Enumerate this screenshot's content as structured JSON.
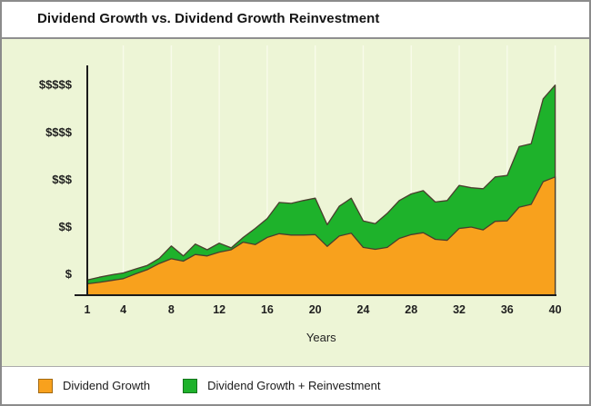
{
  "chart_data": {
    "type": "area",
    "title": "Dividend Growth vs. Dividend Growth Reinvestment",
    "xlabel": "Years",
    "ylabel": "",
    "x_ticks": [
      1,
      4,
      8,
      12,
      16,
      20,
      24,
      28,
      32,
      36,
      40
    ],
    "y_ticks": [
      {
        "value": 1,
        "label": "$"
      },
      {
        "value": 2,
        "label": "$$"
      },
      {
        "value": 3,
        "label": "$$$"
      },
      {
        "value": 4,
        "label": "$$$$"
      },
      {
        "value": 5,
        "label": "$$$$$"
      }
    ],
    "x": [
      1,
      2,
      3,
      4,
      5,
      6,
      7,
      8,
      9,
      10,
      11,
      12,
      13,
      14,
      15,
      16,
      17,
      18,
      19,
      20,
      21,
      22,
      23,
      24,
      25,
      26,
      27,
      28,
      29,
      30,
      31,
      32,
      33,
      34,
      35,
      36,
      37,
      38,
      39,
      40
    ],
    "series": [
      {
        "name": "Dividend Growth",
        "color": "#F8A11D",
        "values": [
          0.79,
          0.82,
          0.86,
          0.9,
          1.0,
          1.09,
          1.22,
          1.32,
          1.27,
          1.41,
          1.38,
          1.46,
          1.51,
          1.67,
          1.62,
          1.77,
          1.85,
          1.82,
          1.82,
          1.83,
          1.58,
          1.8,
          1.86,
          1.56,
          1.52,
          1.56,
          1.75,
          1.83,
          1.87,
          1.73,
          1.71,
          1.96,
          1.99,
          1.93,
          2.11,
          2.12,
          2.41,
          2.47,
          2.95,
          3.05
        ]
      },
      {
        "name": "Dividend Growth + Reinvestment",
        "color": "#1EB22B",
        "values": [
          0.87,
          0.93,
          0.98,
          1.02,
          1.1,
          1.18,
          1.33,
          1.59,
          1.38,
          1.63,
          1.51,
          1.65,
          1.55,
          1.77,
          1.96,
          2.17,
          2.51,
          2.49,
          2.55,
          2.6,
          2.04,
          2.43,
          2.6,
          2.12,
          2.06,
          2.28,
          2.55,
          2.69,
          2.76,
          2.52,
          2.55,
          2.87,
          2.82,
          2.8,
          3.05,
          3.08,
          3.69,
          3.75,
          4.7,
          4.99
        ]
      }
    ],
    "xlim": [
      1,
      40
    ],
    "ylim": [
      0.55,
      5.5
    ],
    "grid": "vertical-faint",
    "legend_position": "bottom"
  },
  "legend": {
    "items": [
      {
        "label": "Dividend Growth",
        "color": "#F8A11D"
      },
      {
        "label": "Dividend Growth + Reinvestment",
        "color": "#1EB22B"
      }
    ]
  },
  "colors": {
    "panel_bg": "#EDF5D6",
    "area_outline": "#4A3E2E",
    "axis": "#1B1B1B",
    "gridline": "#F8FBEA",
    "frame_border": "#8B8B8B",
    "text": "#1A1A1A"
  }
}
